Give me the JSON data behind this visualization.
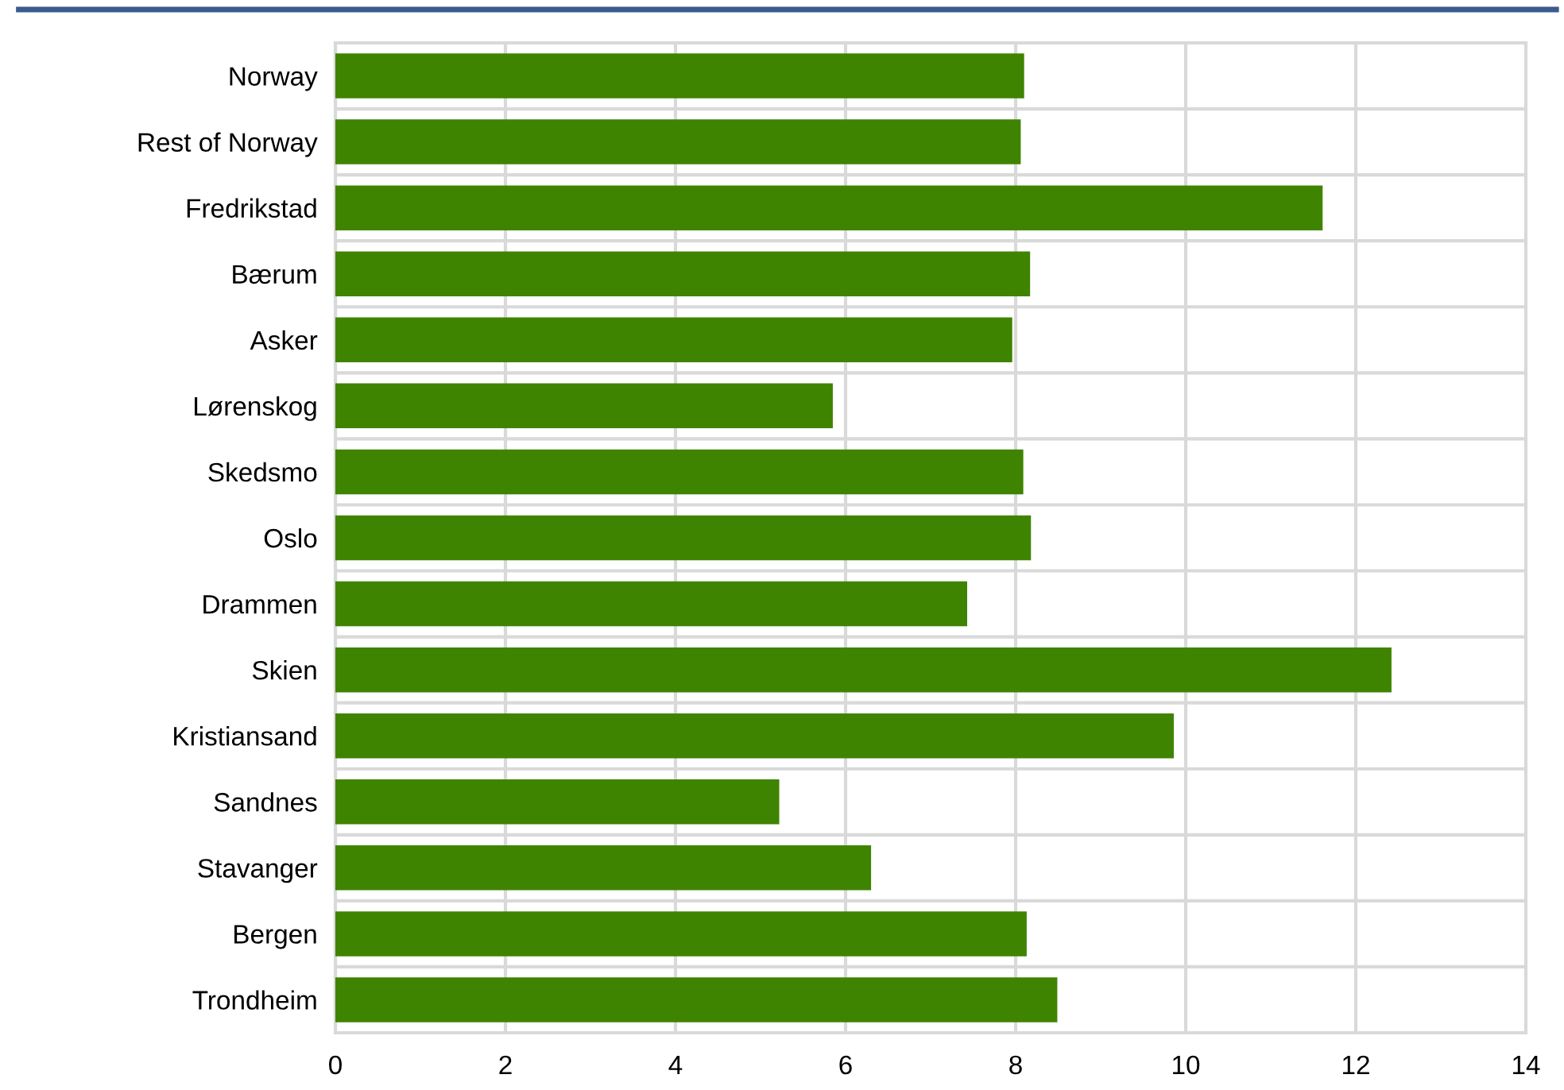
{
  "chart_data": {
    "type": "bar",
    "orientation": "horizontal",
    "categories": [
      "Norway",
      "Rest of Norway",
      "Fredrikstad",
      "Bærum",
      "Asker",
      "Lørenskog",
      "Skedsmo",
      "Oslo",
      "Drammen",
      "Skien",
      "Kristiansand",
      "Sandnes",
      "Stavanger",
      "Bergen",
      "Trondheim"
    ],
    "values": [
      8.1,
      8.06,
      11.61,
      8.17,
      7.96,
      5.85,
      8.09,
      8.18,
      7.43,
      12.42,
      9.86,
      5.22,
      6.3,
      8.13,
      8.49
    ],
    "color": "#3f8400",
    "xlim": [
      0,
      14
    ],
    "xticks": [
      0,
      2,
      4,
      6,
      8,
      10,
      12,
      14
    ],
    "grid": true
  }
}
